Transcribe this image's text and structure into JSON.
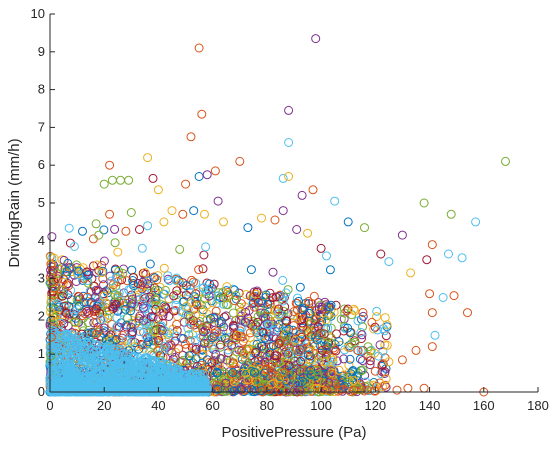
{
  "chart_data": {
    "type": "scatter",
    "title": "",
    "xlabel": "PositivePressure (Pa)",
    "ylabel": "DrivingRain (mm/h)",
    "xlim": [
      0,
      180
    ],
    "ylim": [
      0,
      10
    ],
    "xticks": [
      "0",
      "20",
      "40",
      "60",
      "80",
      "100",
      "120",
      "140",
      "160",
      "180"
    ],
    "yticks": [
      "0",
      "1",
      "2",
      "3",
      "4",
      "5",
      "6",
      "7",
      "8",
      "9",
      "10"
    ],
    "grid": false,
    "legend": "none",
    "marker": "open-circle",
    "colors": [
      "#0072BD",
      "#D95319",
      "#EDB120",
      "#7E2F8E",
      "#77AC30",
      "#4DBEEE",
      "#A2142F"
    ],
    "outliers": [
      {
        "x": 98,
        "y": 9.35,
        "color": "#7E2F8E"
      },
      {
        "x": 55,
        "y": 9.1,
        "color": "#D95319"
      },
      {
        "x": 88,
        "y": 7.45,
        "color": "#7E2F8E"
      },
      {
        "x": 56,
        "y": 7.35,
        "color": "#D95319"
      },
      {
        "x": 52,
        "y": 6.75,
        "color": "#D95319"
      },
      {
        "x": 88,
        "y": 6.6,
        "color": "#4DBEEE"
      },
      {
        "x": 168,
        "y": 6.1,
        "color": "#77AC30"
      },
      {
        "x": 36,
        "y": 6.2,
        "color": "#EDB120"
      },
      {
        "x": 22,
        "y": 6.0,
        "color": "#D95319"
      },
      {
        "x": 20,
        "y": 5.5,
        "color": "#77AC30"
      },
      {
        "x": 23,
        "y": 5.6,
        "color": "#77AC30"
      },
      {
        "x": 26,
        "y": 5.6,
        "color": "#77AC30"
      },
      {
        "x": 29,
        "y": 5.6,
        "color": "#77AC30"
      },
      {
        "x": 38,
        "y": 5.65,
        "color": "#A2142F"
      },
      {
        "x": 40,
        "y": 5.35,
        "color": "#EDB120"
      },
      {
        "x": 50,
        "y": 5.5,
        "color": "#D95319"
      },
      {
        "x": 55,
        "y": 5.7,
        "color": "#0072BD"
      },
      {
        "x": 58,
        "y": 5.75,
        "color": "#7E2F8E"
      },
      {
        "x": 61,
        "y": 5.85,
        "color": "#D95319"
      },
      {
        "x": 70,
        "y": 6.1,
        "color": "#D95319"
      },
      {
        "x": 86,
        "y": 5.65,
        "color": "#4DBEEE"
      },
      {
        "x": 88,
        "y": 5.7,
        "color": "#EDB120"
      },
      {
        "x": 97,
        "y": 5.35,
        "color": "#D95319"
      },
      {
        "x": 105,
        "y": 5.05,
        "color": "#4DBEEE"
      },
      {
        "x": 93,
        "y": 5.2,
        "color": "#7E2F8E"
      },
      {
        "x": 138,
        "y": 5.0,
        "color": "#77AC30"
      },
      {
        "x": 148,
        "y": 4.7,
        "color": "#77AC30"
      },
      {
        "x": 157,
        "y": 4.5,
        "color": "#4DBEEE"
      },
      {
        "x": 116,
        "y": 4.35,
        "color": "#77AC30"
      },
      {
        "x": 110,
        "y": 4.5,
        "color": "#0072BD"
      },
      {
        "x": 130,
        "y": 4.15,
        "color": "#7E2F8E"
      },
      {
        "x": 141,
        "y": 3.9,
        "color": "#D95319"
      },
      {
        "x": 147,
        "y": 3.65,
        "color": "#4DBEEE"
      },
      {
        "x": 152,
        "y": 3.55,
        "color": "#4DBEEE"
      },
      {
        "x": 139,
        "y": 3.5,
        "color": "#A2142F"
      },
      {
        "x": 133,
        "y": 3.15,
        "color": "#EDB120"
      },
      {
        "x": 140,
        "y": 2.6,
        "color": "#D95319"
      },
      {
        "x": 145,
        "y": 2.5,
        "color": "#4DBEEE"
      },
      {
        "x": 149,
        "y": 2.55,
        "color": "#D95319"
      },
      {
        "x": 154,
        "y": 2.1,
        "color": "#D95319"
      },
      {
        "x": 141,
        "y": 2.1,
        "color": "#D95319"
      },
      {
        "x": 142,
        "y": 1.5,
        "color": "#4DBEEE"
      },
      {
        "x": 141,
        "y": 1.2,
        "color": "#D95319"
      },
      {
        "x": 135,
        "y": 1.1,
        "color": "#D95319"
      },
      {
        "x": 130,
        "y": 0.85,
        "color": "#D95319"
      },
      {
        "x": 125,
        "y": 0.8,
        "color": "#EDB120"
      },
      {
        "x": 132,
        "y": 0.1,
        "color": "#D95319"
      },
      {
        "x": 138,
        "y": 0.1,
        "color": "#D95319"
      },
      {
        "x": 128,
        "y": 0.05,
        "color": "#D95319"
      },
      {
        "x": 124,
        "y": 0.35,
        "color": "#EDB120"
      },
      {
        "x": 120,
        "y": 0.55,
        "color": "#D95319"
      },
      {
        "x": 117,
        "y": 0.05,
        "color": "#D95319"
      },
      {
        "x": 112,
        "y": 0.05,
        "color": "#D95319"
      },
      {
        "x": 107,
        "y": 0.05,
        "color": "#D95319"
      },
      {
        "x": 102,
        "y": 0.05,
        "color": "#D95319"
      },
      {
        "x": 92,
        "y": 0.05,
        "color": "#7E2F8E"
      },
      {
        "x": 125,
        "y": 3.45,
        "color": "#4DBEEE"
      },
      {
        "x": 122,
        "y": 3.65,
        "color": "#A2142F"
      },
      {
        "x": 100,
        "y": 3.8,
        "color": "#A2142F"
      },
      {
        "x": 102,
        "y": 3.6,
        "color": "#4DBEEE"
      },
      {
        "x": 95,
        "y": 4.2,
        "color": "#EDB120"
      },
      {
        "x": 91,
        "y": 4.3,
        "color": "#7E2F8E"
      },
      {
        "x": 83,
        "y": 4.55,
        "color": "#D95319"
      },
      {
        "x": 86,
        "y": 4.8,
        "color": "#7E2F8E"
      },
      {
        "x": 78,
        "y": 4.6,
        "color": "#EDB120"
      },
      {
        "x": 73,
        "y": 4.35,
        "color": "#0072BD"
      },
      {
        "x": 62,
        "y": 5.05,
        "color": "#7E2F8E"
      },
      {
        "x": 64,
        "y": 4.5,
        "color": "#EDB120"
      },
      {
        "x": 57,
        "y": 4.7,
        "color": "#EDB120"
      },
      {
        "x": 49,
        "y": 4.7,
        "color": "#D95319"
      },
      {
        "x": 53,
        "y": 4.8,
        "color": "#0072BD"
      },
      {
        "x": 45,
        "y": 4.8,
        "color": "#EDB120"
      },
      {
        "x": 42,
        "y": 4.5,
        "color": "#EDB120"
      },
      {
        "x": 36,
        "y": 4.4,
        "color": "#4DBEEE"
      },
      {
        "x": 30,
        "y": 4.75,
        "color": "#77AC30"
      },
      {
        "x": 22,
        "y": 4.7,
        "color": "#D95319"
      },
      {
        "x": 17,
        "y": 4.45,
        "color": "#77AC30"
      },
      {
        "x": 12,
        "y": 4.25,
        "color": "#0072BD"
      },
      {
        "x": 16,
        "y": 4.05,
        "color": "#D95319"
      },
      {
        "x": 9,
        "y": 3.85,
        "color": "#4DBEEE"
      },
      {
        "x": 24,
        "y": 3.95,
        "color": "#77AC30"
      },
      {
        "x": 18,
        "y": 4.15,
        "color": "#77AC30"
      },
      {
        "x": 28,
        "y": 4.25,
        "color": "#D95319"
      },
      {
        "x": 33,
        "y": 4.3,
        "color": "#A2142F"
      },
      {
        "x": 25,
        "y": 3.7,
        "color": "#EDB120"
      },
      {
        "x": 5,
        "y": 2.9,
        "color": "#EDB120"
      },
      {
        "x": 2,
        "y": 2.3,
        "color": "#4DBEEE"
      },
      {
        "x": 1,
        "y": 1.9,
        "color": "#EDB120"
      },
      {
        "x": 0.5,
        "y": 1.45,
        "color": "#D95319"
      },
      {
        "x": 0.3,
        "y": 0.95,
        "color": "#77AC30"
      },
      {
        "x": 160,
        "y": 0.0,
        "color": "#D95319"
      }
    ]
  }
}
